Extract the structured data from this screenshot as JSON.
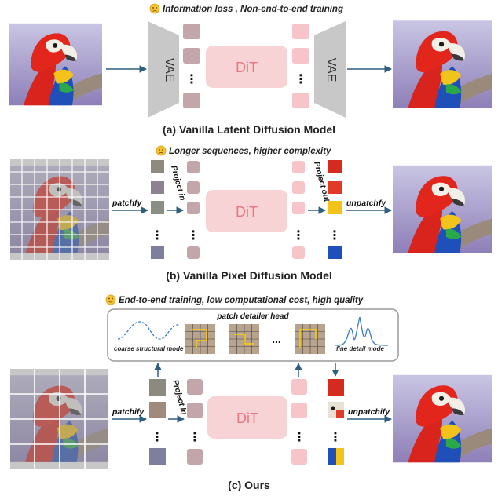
{
  "panel_a": {
    "note": "Information loss , Non-end-to-end training",
    "encoder_label": "VAE",
    "decoder_label": "VAE",
    "dit_label": "DiT",
    "ellipsis": "⋮",
    "caption": "(a) Vanilla Latent Diffusion Model"
  },
  "panel_b": {
    "note": "Longer sequences, higher complexity",
    "patchify_label": "patchfy",
    "project_in_label": "Project in",
    "project_out_label": "Project out",
    "unpatchify_label": "unpatchfy",
    "dit_label": "DiT",
    "ellipsis": "⋮",
    "caption": "(b) Vanilla Pixel Diffusion Model"
  },
  "panel_c": {
    "note": "End-to-end training, low computational cost, high quality",
    "head_title": "patch detailer head",
    "coarse_label": "coarse structural mode",
    "fine_label": "fine detail mode",
    "dots": "...",
    "patchify_label": "patchify",
    "project_in_label": "Project in",
    "unpatchify_label": "unpatchify",
    "dit_label": "DiT",
    "ellipsis": "⋮",
    "caption": "(c) Ours"
  },
  "colors": {
    "arrow": "#2f5f7f",
    "vae": "#c8c8c8",
    "dit": "#f8d3d6",
    "token_left": "#c2a6a9",
    "token_right": "#f7c5c9",
    "dit_text": "#e8787e"
  },
  "icons": {
    "sad": "sad-face-icon",
    "happy": "happy-face-icon"
  }
}
